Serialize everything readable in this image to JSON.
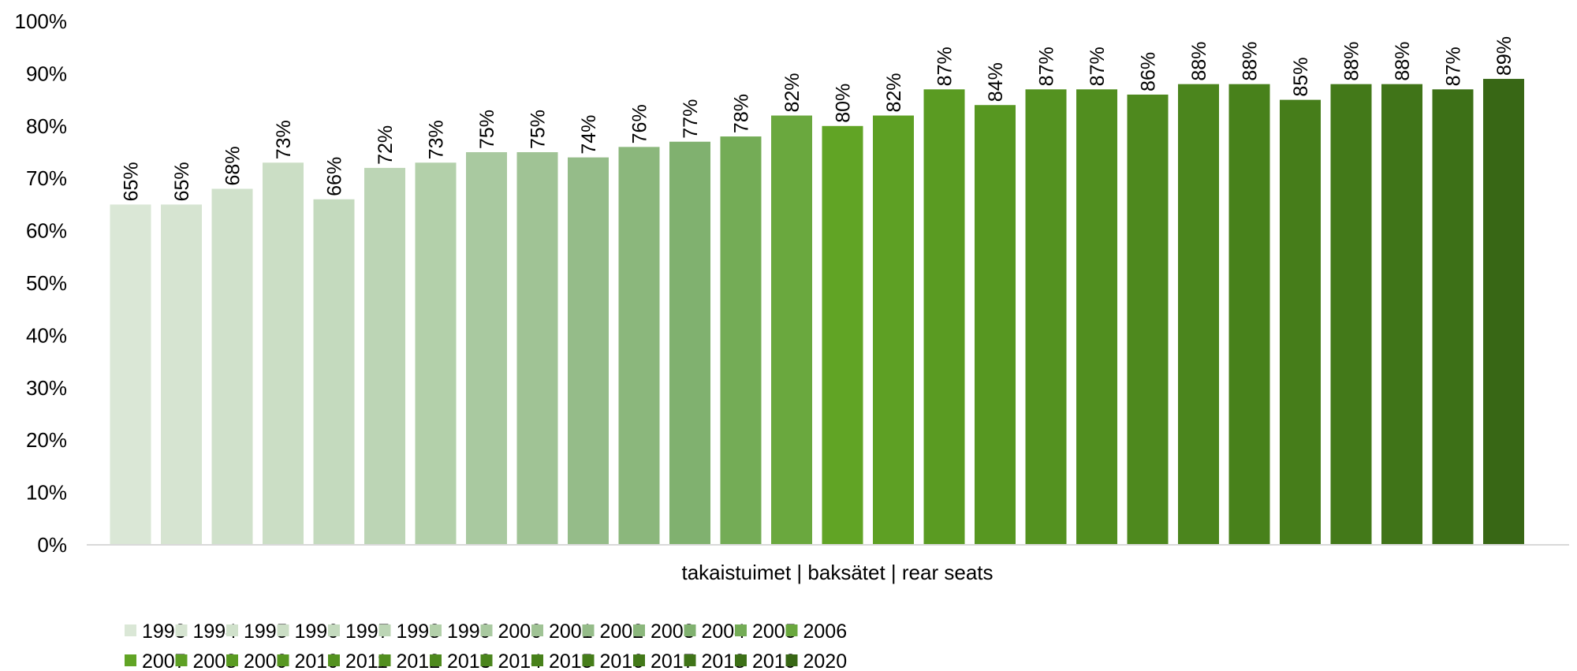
{
  "chart_data": {
    "type": "bar",
    "categories": [
      "takaistuimet | baksätet | rear seats"
    ],
    "xlabel": "takaistuimet | baksätet | rear seats",
    "ylabel": "",
    "ylim": [
      0,
      100
    ],
    "yticks": [
      "0%",
      "10%",
      "20%",
      "30%",
      "40%",
      "50%",
      "60%",
      "70%",
      "80%",
      "90%",
      "100%"
    ],
    "grid": false,
    "legend_position": "bottom",
    "series": [
      {
        "name": "1993",
        "values": [
          65
        ],
        "label": "65%",
        "color": "#dae7d6"
      },
      {
        "name": "1994",
        "values": [
          65
        ],
        "label": "65%",
        "color": "#d6e4d1"
      },
      {
        "name": "1995",
        "values": [
          68
        ],
        "label": "68%",
        "color": "#d0e1cb"
      },
      {
        "name": "1996",
        "values": [
          73
        ],
        "label": "73%",
        "color": "#cbdec5"
      },
      {
        "name": "1997",
        "values": [
          66
        ],
        "label": "66%",
        "color": "#c4dabe"
      },
      {
        "name": "1998",
        "values": [
          72
        ],
        "label": "72%",
        "color": "#bcd5b5"
      },
      {
        "name": "1999",
        "values": [
          73
        ],
        "label": "73%",
        "color": "#b3d0aa"
      },
      {
        "name": "2000",
        "values": [
          75
        ],
        "label": "75%",
        "color": "#a9c9a0"
      },
      {
        "name": "2001",
        "values": [
          75
        ],
        "label": "75%",
        "color": "#a0c395"
      },
      {
        "name": "2002",
        "values": [
          74
        ],
        "label": "74%",
        "color": "#95bc89"
      },
      {
        "name": "2003",
        "values": [
          76
        ],
        "label": "76%",
        "color": "#8bb77c"
      },
      {
        "name": "2004",
        "values": [
          77
        ],
        "label": "77%",
        "color": "#80b16f"
      },
      {
        "name": "2005",
        "values": [
          78
        ],
        "label": "78%",
        "color": "#74ac56"
      },
      {
        "name": "2006",
        "values": [
          82
        ],
        "label": "82%",
        "color": "#6aa83e"
      },
      {
        "name": "2007",
        "values": [
          80
        ],
        "label": "80%",
        "color": "#61a425"
      },
      {
        "name": "2008",
        "values": [
          82
        ],
        "label": "82%",
        "color": "#5ea024"
      },
      {
        "name": "2009",
        "values": [
          87
        ],
        "label": "87%",
        "color": "#5a9b22"
      },
      {
        "name": "2010",
        "values": [
          84
        ],
        "label": "84%",
        "color": "#579721"
      },
      {
        "name": "2011",
        "values": [
          87
        ],
        "label": "87%",
        "color": "#549220"
      },
      {
        "name": "2012",
        "values": [
          87
        ],
        "label": "87%",
        "color": "#518e1f"
      },
      {
        "name": "2013",
        "values": [
          86
        ],
        "label": "86%",
        "color": "#4e891e"
      },
      {
        "name": "2014",
        "values": [
          88
        ],
        "label": "88%",
        "color": "#4b851d"
      },
      {
        "name": "2015",
        "values": [
          88
        ],
        "label": "88%",
        "color": "#48811b"
      },
      {
        "name": "2016",
        "values": [
          85
        ],
        "label": "85%",
        "color": "#467d1a"
      },
      {
        "name": "2017",
        "values": [
          88
        ],
        "label": "88%",
        "color": "#437919"
      },
      {
        "name": "2018",
        "values": [
          88
        ],
        "label": "88%",
        "color": "#407418"
      },
      {
        "name": "2019",
        "values": [
          87
        ],
        "label": "87%",
        "color": "#3d7017"
      },
      {
        "name": "2020",
        "values": [
          89
        ],
        "label": "89%",
        "color": "#386715"
      }
    ]
  }
}
